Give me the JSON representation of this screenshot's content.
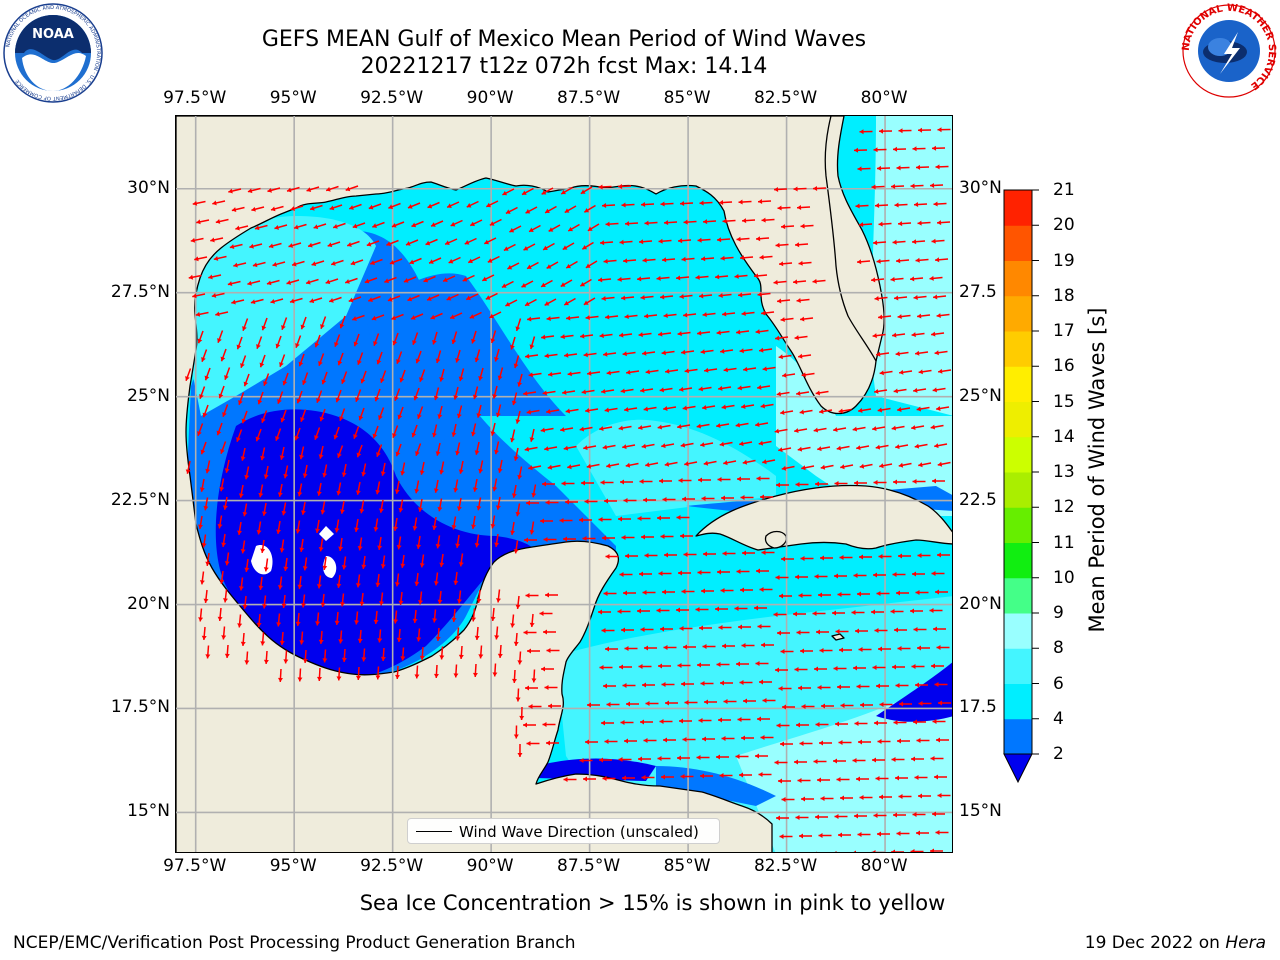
{
  "title": {
    "line1": "GEFS MEAN Gulf of Mexico Mean Period of Wind Waves",
    "line2": "20221217 t12z 072h fcst   Max: 14.14"
  },
  "map": {
    "lon_labels": [
      "97.5°W",
      "95°W",
      "92.5°W",
      "90°W",
      "87.5°W",
      "85°W",
      "82.5°W",
      "80°W"
    ],
    "lat_labels": [
      "30°N",
      "27.5°N",
      "25°N",
      "22.5°N",
      "20°N",
      "17.5°N",
      "15°N"
    ],
    "lat_labels_right": [
      "30°N",
      "27.5",
      "25°N",
      "22.5",
      "20°N",
      "17.5",
      "15°N"
    ],
    "lon_range": [
      -98,
      -78.25
    ],
    "lat_range": [
      14,
      31.75
    ],
    "land_color": "#efecdc",
    "arrow_color": "#ff0000",
    "legend": "Wind Wave Direction (unscaled)"
  },
  "colorbar": {
    "label": "Mean Period of Wind Waves [s]",
    "ticks": [
      "21",
      "20",
      "19",
      "18",
      "17",
      "16",
      "15",
      "14",
      "13",
      "12",
      "11",
      "10",
      "9",
      "8",
      "6",
      "4",
      "2"
    ],
    "colors": [
      "#0000ee",
      "#0077ff",
      "#00eeff",
      "#44f5ff",
      "#99ffff",
      "#44ff88",
      "#11ee11",
      "#66ee00",
      "#aaee00",
      "#ccff00",
      "#eeee00",
      "#ffee00",
      "#ffcc00",
      "#ffaa00",
      "#ff8800",
      "#ff5500",
      "#ff2200",
      "#ee0000"
    ]
  },
  "notes": {
    "sea_ice": "Sea Ice Concentration > 15% is shown in pink to yellow",
    "producer": "NCEP/EMC/Verification Post Processing Product Generation Branch",
    "date": "19 Dec 2022 on ",
    "machine": "Hera"
  },
  "logos": {
    "noaa": "NOAA",
    "noaa_ring": "NATIONAL OCEANIC AND ATMOSPHERIC ADMINISTRATION · U.S. DEPARTMENT OF COMMERCE",
    "nws_ring": "NATIONAL WEATHER SERVICE"
  }
}
